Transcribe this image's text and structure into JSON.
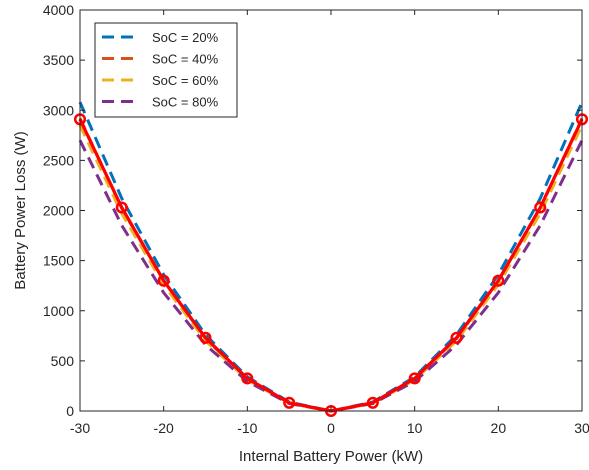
{
  "chart_data": {
    "type": "line",
    "title": "",
    "xlabel": "Internal Battery Power (kW)",
    "ylabel": "Battery Power Loss (W)",
    "xlim": [
      -30,
      30
    ],
    "ylim": [
      0,
      4000
    ],
    "xticks": [
      -30,
      -20,
      -10,
      0,
      10,
      20,
      30
    ],
    "yticks": [
      0,
      500,
      1000,
      1500,
      2000,
      2500,
      3000,
      3500,
      4000
    ],
    "grid": false,
    "legend_position": "top-left",
    "x": [
      -30,
      -25,
      -20,
      -15,
      -10,
      -5,
      0,
      5,
      10,
      15,
      20,
      25,
      30
    ],
    "series": [
      {
        "name": "SoC = 20%",
        "style": "dashed",
        "color": "#0072BD",
        "values": [
          3080,
          2120,
          1360,
          760,
          340,
          90,
          0,
          90,
          340,
          760,
          1360,
          2120,
          3080
        ]
      },
      {
        "name": "SoC = 40%",
        "style": "dashed",
        "color": "#D95319",
        "values": [
          2920,
          2020,
          1300,
          720,
          320,
          80,
          0,
          80,
          320,
          720,
          1300,
          2020,
          2920
        ]
      },
      {
        "name": "SoC = 60%",
        "style": "dashed",
        "color": "#EDB120",
        "values": [
          2850,
          1970,
          1260,
          700,
          310,
          78,
          0,
          78,
          310,
          700,
          1260,
          1970,
          2850
        ]
      },
      {
        "name": "SoC = 80%",
        "style": "dashed",
        "color": "#7E2F8E",
        "values": [
          2700,
          1850,
          1180,
          660,
          295,
          75,
          0,
          75,
          295,
          660,
          1180,
          1850,
          2700
        ]
      },
      {
        "name": "",
        "style": "solid-circles",
        "color": "#FF0000",
        "values": [
          2910,
          2030,
          1300,
          730,
          325,
          82,
          0,
          82,
          325,
          730,
          1300,
          2030,
          2910
        ]
      }
    ]
  }
}
